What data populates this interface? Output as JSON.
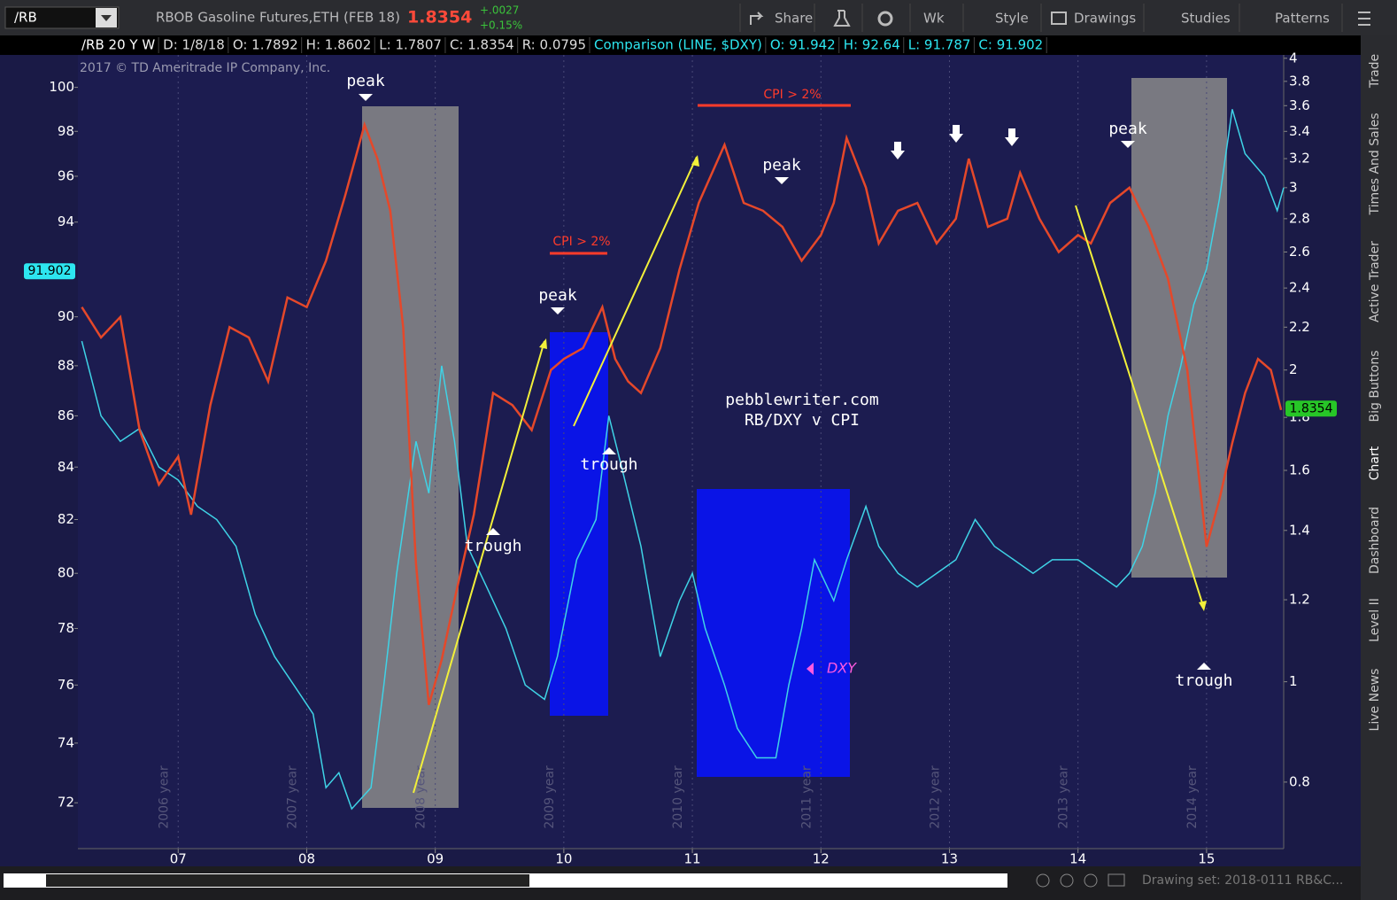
{
  "toolbar": {
    "symbol": "/RB",
    "description": "RBOB Gasoline Futures,ETH (FEB 18)",
    "last": "1.8354",
    "change": "+.0027",
    "change_pct": "+0.15%",
    "buttons": [
      "Share",
      "Wk",
      "Style",
      "Drawings",
      "Studies",
      "Patterns"
    ]
  },
  "header": {
    "fields": [
      "/RB 20 Y W",
      "D: 1/8/18",
      "O: 1.7892",
      "H: 1.8602",
      "L: 1.7807",
      "C: 1.8354",
      "R: 0.0795",
      "Comparison (LINE, $DXY)",
      "O: 91.942",
      "H: 92.64",
      "L: 91.787",
      "C: 91.902"
    ]
  },
  "copyright": "2017 © TD Ameritrade IP Company, Inc.",
  "annotations": {
    "peak": "peak",
    "trough": "trough",
    "cpi": "CPI > 2%",
    "site": "pebblewriter.com",
    "subtitle": "RB/DXY v CPI",
    "dxy": "DXY"
  },
  "sidebar": [
    "Trade",
    "Times And Sales",
    "Active Trader",
    "Big Buttons",
    "Chart",
    "Dashboard",
    "Level II",
    "Live News"
  ],
  "status": "Drawing set: 2018-0111 RB&C...",
  "chart_data": {
    "type": "line",
    "log_scale": true,
    "grid": "x",
    "xlim": [
      2006.22,
      2015.6
    ],
    "xticks": [
      {
        "value": 2007,
        "label": "07"
      },
      {
        "value": 2008,
        "label": "08"
      },
      {
        "value": 2009,
        "label": "09"
      },
      {
        "value": 2010,
        "label": "10"
      },
      {
        "value": 2011,
        "label": "11"
      },
      {
        "value": 2012,
        "label": "12"
      },
      {
        "value": 2013,
        "label": "13"
      },
      {
        "value": 2014,
        "label": "14"
      },
      {
        "value": 2015,
        "label": "15"
      }
    ],
    "period_labels": [
      "2006 year",
      "2007 year",
      "2008 year",
      "2009 year",
      "2010 year",
      "2011 year",
      "2012 year",
      "2013 year",
      "2014 year"
    ],
    "ylim": [
      70.5,
      101.5
    ],
    "yticks": [
      72,
      74,
      76,
      78,
      80,
      82,
      84,
      86,
      88,
      90,
      94,
      96,
      98,
      100
    ],
    "y2lim": [
      0.69,
      4.03
    ],
    "y2ticks": [
      0.8,
      1,
      1.2,
      1.4,
      1.6,
      1.8,
      2,
      2.2,
      2.4,
      2.6,
      2.8,
      3,
      3.2,
      3.4,
      3.6,
      3.8,
      4
    ],
    "series": [
      {
        "name": "$DXY",
        "color": "#3fd3e6",
        "axis": "y",
        "x": [
          2006.25,
          2006.4,
          2006.55,
          2006.7,
          2006.85,
          2007.0,
          2007.15,
          2007.3,
          2007.45,
          2007.6,
          2007.75,
          2007.9,
          2008.05,
          2008.15,
          2008.25,
          2008.35,
          2008.5,
          2008.6,
          2008.7,
          2008.85,
          2008.95,
          2009.05,
          2009.15,
          2009.25,
          2009.4,
          2009.55,
          2009.7,
          2009.85,
          2009.95,
          2010.1,
          2010.25,
          2010.35,
          2010.45,
          2010.6,
          2010.75,
          2010.9,
          2011.0,
          2011.1,
          2011.25,
          2011.35,
          2011.5,
          2011.65,
          2011.75,
          2011.85,
          2011.95,
          2012.1,
          2012.2,
          2012.35,
          2012.45,
          2012.6,
          2012.75,
          2012.9,
          2013.05,
          2013.2,
          2013.35,
          2013.5,
          2013.65,
          2013.8,
          2014.0,
          2014.15,
          2014.3,
          2014.4,
          2014.5,
          2014.6,
          2014.7,
          2014.8,
          2014.9,
          2015.0,
          2015.1,
          2015.2,
          2015.3,
          2015.45,
          2015.55,
          2015.6
        ],
        "values": [
          89,
          86,
          85,
          85.5,
          84,
          83.5,
          82.5,
          82,
          81,
          78.5,
          77,
          76,
          75,
          72.5,
          73,
          71.8,
          72.5,
          76,
          80,
          85,
          83,
          88,
          85,
          81,
          79.5,
          78,
          76,
          75.5,
          77,
          80.5,
          82,
          86,
          84,
          81,
          77,
          79,
          80,
          78,
          76,
          74.5,
          73.5,
          73.5,
          76,
          78,
          80.5,
          79,
          80.5,
          82.5,
          81,
          80,
          79.5,
          80,
          80.5,
          82,
          81,
          80.5,
          80,
          80.5,
          80.5,
          80,
          79.5,
          80,
          81,
          83,
          86,
          88,
          90.5,
          92,
          95,
          99,
          97,
          96,
          94.5,
          95.5
        ]
      },
      {
        "name": "/RB",
        "color": "#e5482a",
        "axis": "y2",
        "x": [
          2006.25,
          2006.4,
          2006.55,
          2006.7,
          2006.85,
          2007.0,
          2007.1,
          2007.25,
          2007.4,
          2007.55,
          2007.7,
          2007.85,
          2008.0,
          2008.15,
          2008.3,
          2008.45,
          2008.55,
          2008.65,
          2008.75,
          2008.85,
          2008.95,
          2009.05,
          2009.15,
          2009.3,
          2009.45,
          2009.6,
          2009.75,
          2009.9,
          2010.0,
          2010.15,
          2010.3,
          2010.4,
          2010.5,
          2010.6,
          2010.75,
          2010.9,
          2011.05,
          2011.25,
          2011.4,
          2011.55,
          2011.7,
          2011.85,
          2012.0,
          2012.1,
          2012.2,
          2012.35,
          2012.45,
          2012.6,
          2012.75,
          2012.9,
          2013.05,
          2013.15,
          2013.3,
          2013.45,
          2013.55,
          2013.7,
          2013.85,
          2014.0,
          2014.1,
          2014.25,
          2014.4,
          2014.55,
          2014.7,
          2014.85,
          2015.0,
          2015.1,
          2015.2,
          2015.3,
          2015.4,
          2015.5,
          2015.58
        ],
        "values": [
          2.3,
          2.15,
          2.25,
          1.75,
          1.55,
          1.65,
          1.45,
          1.85,
          2.2,
          2.15,
          1.95,
          2.35,
          2.3,
          2.55,
          2.95,
          3.45,
          3.2,
          2.85,
          2.2,
          1.3,
          0.95,
          1.05,
          1.2,
          1.45,
          1.9,
          1.85,
          1.75,
          2.0,
          2.05,
          2.1,
          2.3,
          2.05,
          1.95,
          1.9,
          2.1,
          2.5,
          2.9,
          3.3,
          2.9,
          2.85,
          2.75,
          2.55,
          2.7,
          2.9,
          3.35,
          3.0,
          2.65,
          2.85,
          2.9,
          2.65,
          2.8,
          3.2,
          2.75,
          2.8,
          3.1,
          2.8,
          2.6,
          2.7,
          2.65,
          2.9,
          3.0,
          2.75,
          2.45,
          2.0,
          1.35,
          1.5,
          1.7,
          1.9,
          2.05,
          2.0,
          1.83
        ]
      }
    ],
    "price_tags": [
      {
        "value": 91.902,
        "axis": "y",
        "color": "#2de6f0"
      },
      {
        "value": 1.8354,
        "axis": "y2",
        "color": "#27c627"
      }
    ]
  }
}
